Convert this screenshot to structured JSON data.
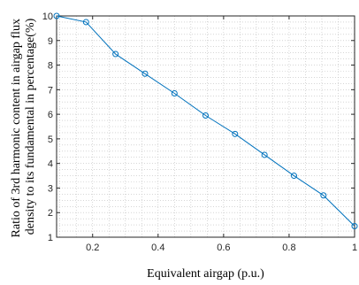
{
  "chart_data": {
    "type": "line",
    "title": "",
    "xlabel": "Equivalent airgap (p.u.)",
    "ylabel_lines": [
      "Ratio of 3rd harmonic content in airgap flux",
      "density to its fundamental in percentage(%)"
    ],
    "xlim": [
      0.09,
      1.0
    ],
    "ylim": [
      1,
      10
    ],
    "xticks": [
      0.2,
      0.4,
      0.6,
      0.8,
      1
    ],
    "xtick_labels": [
      "0.2",
      "0.4",
      "0.6",
      "0.8",
      "1"
    ],
    "yticks": [
      1,
      2,
      3,
      4,
      5,
      6,
      7,
      8,
      9,
      10
    ],
    "ytick_labels": [
      "1",
      "2",
      "3",
      "4",
      "5",
      "6",
      "7",
      "8",
      "9",
      "10"
    ],
    "grid": true,
    "minor_grid": true,
    "series": [
      {
        "color": "#0072BD",
        "marker": "circle",
        "x": [
          0.09,
          0.18,
          0.27,
          0.36,
          0.45,
          0.545,
          0.635,
          0.725,
          0.815,
          0.905,
          1.0
        ],
        "y": [
          10.0,
          9.75,
          8.45,
          7.65,
          6.85,
          5.95,
          5.2,
          4.35,
          3.5,
          2.7,
          1.45
        ]
      }
    ]
  }
}
